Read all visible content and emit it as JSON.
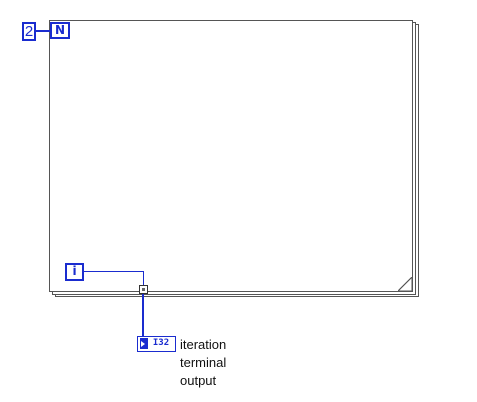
{
  "count_constant": {
    "value": "2"
  },
  "count_terminal": {
    "label": "N"
  },
  "iteration_terminal": {
    "label": "i"
  },
  "indicator": {
    "type_label": "I32",
    "label": "iteration\nterminal\noutput"
  },
  "colors": {
    "wire_integer": "#1a2ccf",
    "frame_border": "#555555",
    "background": "#ffffff"
  },
  "icons": [
    "for-loop-frame",
    "count-terminal",
    "iteration-terminal",
    "tunnel",
    "i32-indicator"
  ]
}
